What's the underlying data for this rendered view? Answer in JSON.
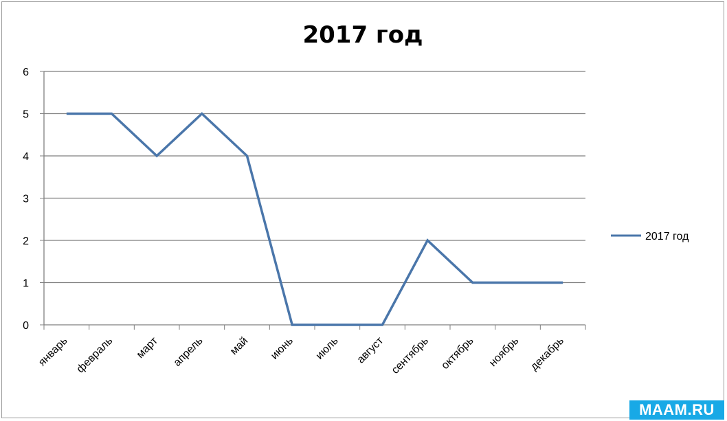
{
  "chart_data": {
    "type": "line",
    "title": "2017 год",
    "categories": [
      "январь",
      "февраль",
      "март",
      "апрель",
      "май",
      "июнь",
      "июль",
      "август",
      "сентябрь",
      "октябрь",
      "ноябрь",
      "декабрь"
    ],
    "series": [
      {
        "name": "2017 год",
        "values": [
          5,
          5,
          4,
          5,
          4,
          0,
          0,
          0,
          2,
          1,
          1,
          1
        ],
        "color": "#4a76aa"
      }
    ],
    "yticks": [
      "0",
      "1",
      "2",
      "3",
      "4",
      "5",
      "6"
    ],
    "ylim": [
      0,
      6
    ],
    "xlabel": "",
    "ylabel": "",
    "grid": true,
    "legend_position": "right"
  },
  "watermark": "MAAM.RU"
}
